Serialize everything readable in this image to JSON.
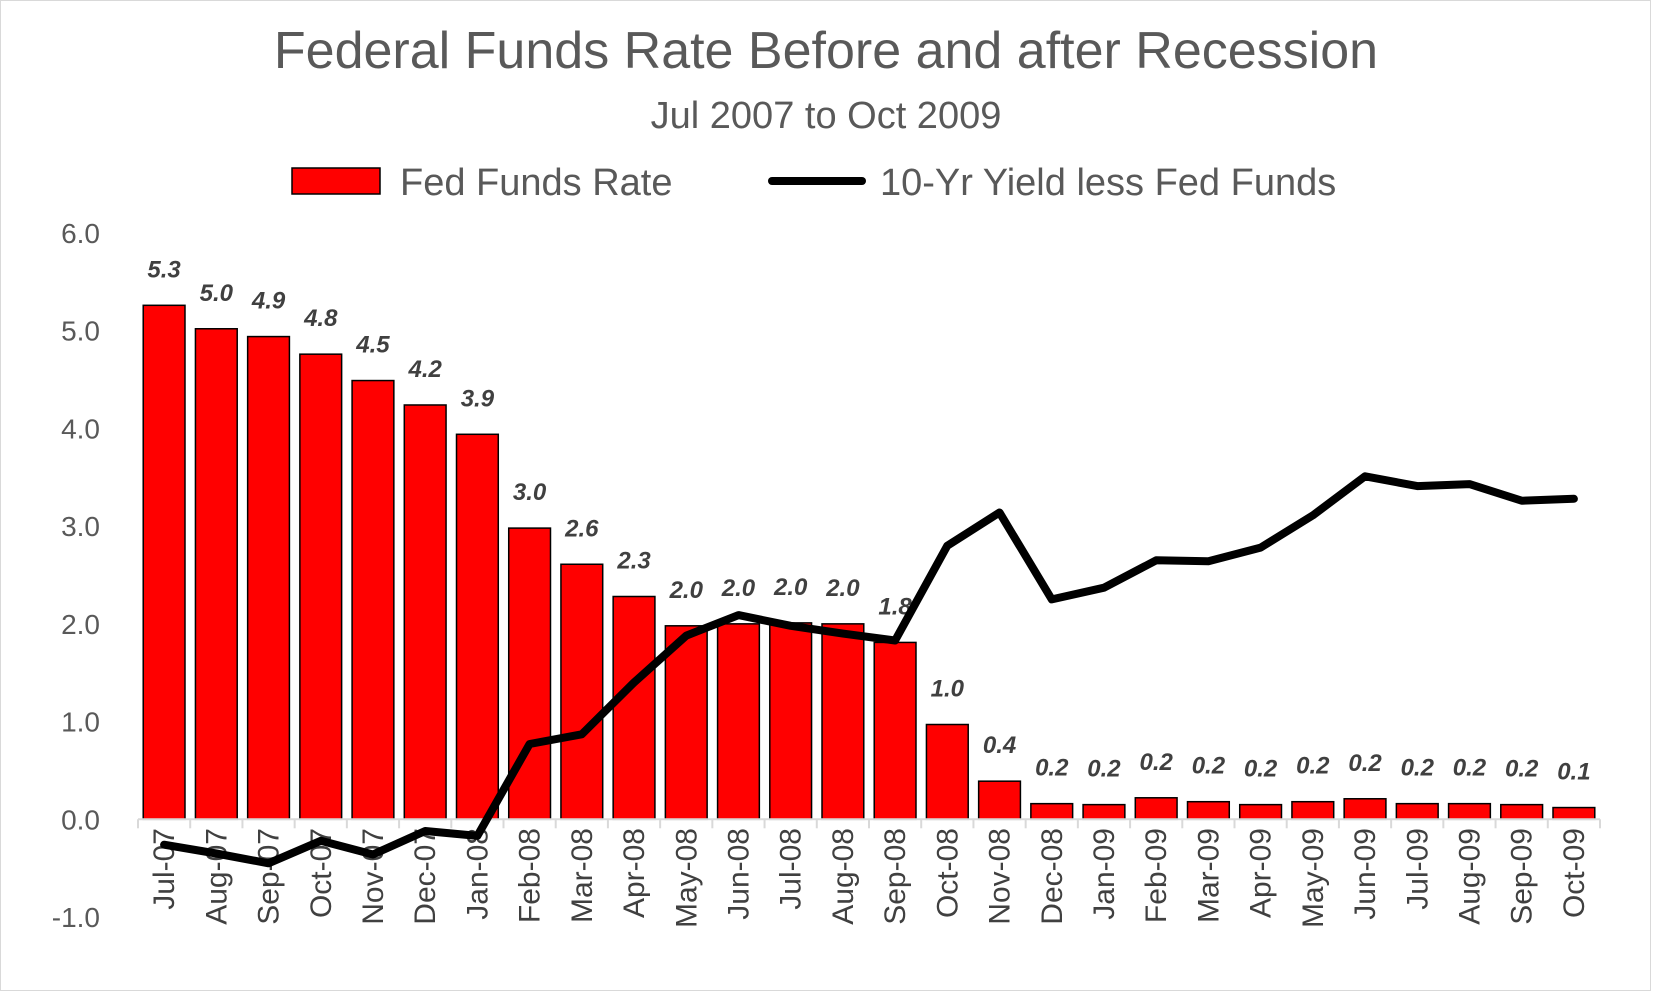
{
  "chart_data": {
    "type": "bar",
    "title": "Federal Funds Rate Before and after Recession",
    "subtitle": "Jul 2007 to Oct 2009",
    "xlabel": "",
    "ylabel": "",
    "ylim": [
      -1.0,
      6.0
    ],
    "yticks": [
      "6.0",
      "5.0",
      "4.0",
      "3.0",
      "2.0",
      "1.0",
      "0.0",
      "-1.0"
    ],
    "grid": false,
    "legend_position": "top",
    "categories": [
      "Jul-07",
      "Aug-07",
      "Sep-07",
      "Oct-07",
      "Nov-07",
      "Dec-07",
      "Jan-08",
      "Feb-08",
      "Mar-08",
      "Apr-08",
      "May-08",
      "Jun-08",
      "Jul-08",
      "Aug-08",
      "Sep-08",
      "Oct-08",
      "Nov-08",
      "Dec-08",
      "Jan-09",
      "Feb-09",
      "Mar-09",
      "Apr-09",
      "May-09",
      "Jun-09",
      "Jul-09",
      "Aug-09",
      "Sep-09",
      "Oct-09"
    ],
    "series": [
      {
        "name": "Fed Funds Rate",
        "type": "bar",
        "color": "#ff0000",
        "values": [
          5.26,
          5.02,
          4.94,
          4.76,
          4.49,
          4.24,
          3.94,
          2.98,
          2.61,
          2.28,
          1.98,
          2.0,
          2.01,
          2.0,
          1.81,
          0.97,
          0.39,
          0.16,
          0.15,
          0.22,
          0.18,
          0.15,
          0.18,
          0.21,
          0.16,
          0.16,
          0.15,
          0.12
        ],
        "labels": [
          "5.3",
          "5.0",
          "4.9",
          "4.8",
          "4.5",
          "4.2",
          "3.9",
          "3.0",
          "2.6",
          "2.3",
          "2.0",
          "2.0",
          "2.0",
          "2.0",
          "1.8",
          "1.0",
          "0.4",
          "0.2",
          "0.2",
          "0.2",
          "0.2",
          "0.2",
          "0.2",
          "0.2",
          "0.2",
          "0.2",
          "0.2",
          "0.1"
        ]
      },
      {
        "name": "10-Yr Yield less Fed Funds",
        "type": "line",
        "color": "#000000",
        "values": [
          -0.26,
          -0.35,
          -0.45,
          -0.22,
          -0.36,
          -0.12,
          -0.17,
          0.77,
          0.87,
          1.4,
          1.88,
          2.09,
          1.98,
          1.9,
          1.83,
          2.8,
          3.14,
          2.25,
          2.37,
          2.65,
          2.64,
          2.78,
          3.11,
          3.51,
          3.41,
          3.43,
          3.26,
          3.28
        ]
      }
    ]
  }
}
